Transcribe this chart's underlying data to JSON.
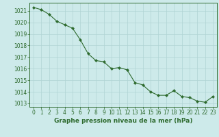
{
  "x": [
    0,
    1,
    2,
    3,
    4,
    5,
    6,
    7,
    8,
    9,
    10,
    11,
    12,
    13,
    14,
    15,
    16,
    17,
    18,
    19,
    20,
    21,
    22,
    23
  ],
  "y": [
    1021.3,
    1021.1,
    1020.7,
    1020.1,
    1019.8,
    1019.5,
    1018.5,
    1017.3,
    1016.7,
    1016.6,
    1016.0,
    1016.1,
    1015.9,
    1014.8,
    1014.6,
    1014.0,
    1013.7,
    1013.7,
    1014.1,
    1013.6,
    1013.5,
    1013.2,
    1013.1,
    1013.6
  ],
  "line_color": "#2d6a2d",
  "marker": "D",
  "marker_size": 2.2,
  "bg_color": "#cdeaea",
  "grid_color": "#b0d4d4",
  "title": "Graphe pression niveau de la mer (hPa)",
  "ylim_min": 1012.7,
  "ylim_max": 1021.7,
  "xlim_min": -0.5,
  "xlim_max": 23.5,
  "yticks": [
    1013,
    1014,
    1015,
    1016,
    1017,
    1018,
    1019,
    1020,
    1021
  ],
  "xticks": [
    0,
    1,
    2,
    3,
    4,
    5,
    6,
    7,
    8,
    9,
    10,
    11,
    12,
    13,
    14,
    15,
    16,
    17,
    18,
    19,
    20,
    21,
    22,
    23
  ],
  "tick_label_fontsize": 5.5,
  "title_fontsize": 6.5,
  "title_fontweight": "bold",
  "linewidth": 0.8
}
